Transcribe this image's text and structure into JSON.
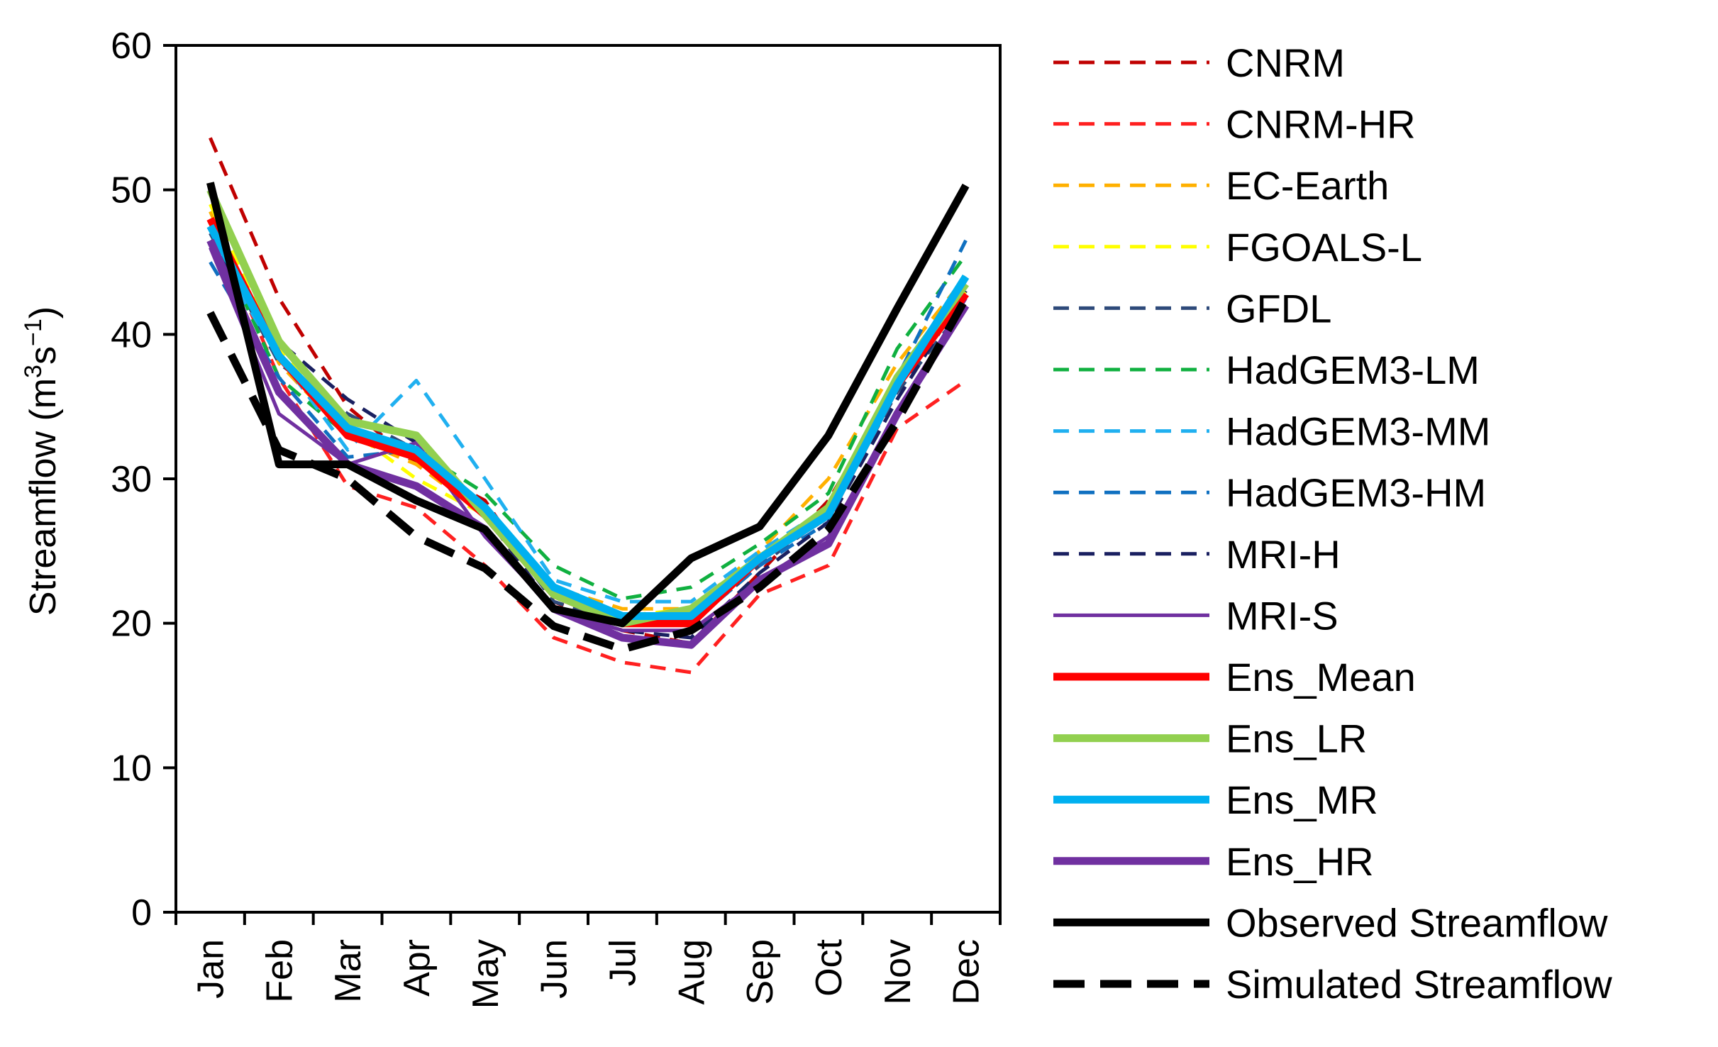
{
  "chart_data": {
    "type": "line",
    "title": "",
    "xlabel": "",
    "ylabel_main": "Streamflow (m",
    "ylabel_sup1": "3",
    "ylabel_mid": "s",
    "ylabel_sup2": "−1",
    "ylabel_end": ")",
    "ylim": [
      0,
      60
    ],
    "yticks": [
      "0",
      "10",
      "20",
      "30",
      "40",
      "50",
      "60"
    ],
    "categories": [
      "Jan",
      "Feb",
      "Mar",
      "Apr",
      "May",
      "Jun",
      "Jul",
      "Aug",
      "Sep",
      "Oct",
      "Nov",
      "Dec"
    ],
    "legend_position": "right",
    "series": [
      {
        "name": "CNRM",
        "color": "#c00000",
        "dash": "short",
        "width": "thin",
        "values": [
          53.6,
          42.5,
          35.0,
          31.0,
          28.5,
          21.5,
          19.5,
          18.6,
          23.5,
          28.5,
          36.5,
          43.0
        ]
      },
      {
        "name": "CNRM-HR",
        "color": "#ff2020",
        "dash": "short",
        "width": "thin",
        "values": [
          48.0,
          37.0,
          29.5,
          28.0,
          24.0,
          19.0,
          17.3,
          16.6,
          22.0,
          24.0,
          33.5,
          36.8
        ]
      },
      {
        "name": "EC-Earth",
        "color": "#ffb000",
        "dash": "short",
        "width": "thin",
        "values": [
          48.5,
          38.0,
          33.0,
          31.0,
          27.5,
          22.5,
          21.0,
          21.0,
          25.0,
          30.0,
          38.0,
          44.0
        ]
      },
      {
        "name": "FGOALS-L",
        "color": "#ffff00",
        "dash": "short",
        "width": "thin",
        "values": [
          49.0,
          39.0,
          33.5,
          30.0,
          27.5,
          22.0,
          20.5,
          21.0,
          24.5,
          28.0,
          37.0,
          43.0
        ]
      },
      {
        "name": "GFDL",
        "color": "#2e4a7a",
        "dash": "short",
        "width": "thin",
        "values": [
          47.0,
          38.0,
          34.5,
          32.0,
          28.0,
          21.5,
          20.0,
          20.0,
          24.0,
          27.5,
          36.0,
          42.0
        ]
      },
      {
        "name": "HadGEM3-LM",
        "color": "#10b040",
        "dash": "short",
        "width": "thin",
        "values": [
          47.5,
          37.0,
          33.0,
          32.0,
          29.0,
          24.0,
          21.7,
          22.5,
          25.5,
          29.0,
          39.0,
          45.5
        ]
      },
      {
        "name": "HadGEM3-MM",
        "color": "#20b0f0",
        "dash": "short",
        "width": "thin",
        "values": [
          46.0,
          38.5,
          32.0,
          36.8,
          30.0,
          23.0,
          21.5,
          21.5,
          25.0,
          28.0,
          37.0,
          44.0
        ]
      },
      {
        "name": "HadGEM3-HM",
        "color": "#1070c0",
        "dash": "short",
        "width": "thin",
        "values": [
          45.0,
          37.0,
          31.5,
          32.0,
          28.0,
          22.0,
          20.0,
          20.0,
          24.0,
          27.0,
          37.0,
          46.5
        ]
      },
      {
        "name": "MRI-H",
        "color": "#1a2060",
        "dash": "short",
        "width": "thin",
        "values": [
          46.5,
          39.5,
          35.5,
          32.5,
          27.5,
          21.0,
          19.5,
          19.0,
          23.5,
          27.0,
          35.5,
          43.0
        ]
      },
      {
        "name": "MRI-S",
        "color": "#7030a0",
        "dash": "solid",
        "width": "thin",
        "values": [
          46.0,
          34.5,
          31.0,
          32.5,
          26.0,
          21.0,
          19.5,
          19.5,
          23.0,
          26.0,
          34.5,
          42.5
        ]
      },
      {
        "name": "Ens_Mean",
        "color": "#ff0000",
        "dash": "solid",
        "width": "thick",
        "values": [
          48.0,
          38.5,
          33.0,
          31.5,
          27.5,
          22.0,
          20.0,
          20.0,
          24.5,
          27.5,
          36.5,
          42.8
        ]
      },
      {
        "name": "Ens_LR",
        "color": "#92d050",
        "dash": "solid",
        "width": "thick",
        "values": [
          50.0,
          39.5,
          34.0,
          33.0,
          27.5,
          22.0,
          20.0,
          21.0,
          24.5,
          28.0,
          37.0,
          43.5
        ]
      },
      {
        "name": "Ens_MR",
        "color": "#00b0f0",
        "dash": "solid",
        "width": "thick",
        "values": [
          47.5,
          38.5,
          33.5,
          32.0,
          28.0,
          22.5,
          20.5,
          20.5,
          24.5,
          27.5,
          36.5,
          44.0
        ]
      },
      {
        "name": "Ens_HR",
        "color": "#7030a0",
        "dash": "solid",
        "width": "thick",
        "values": [
          46.5,
          36.0,
          31.0,
          29.5,
          26.5,
          21.0,
          19.0,
          18.5,
          23.0,
          25.5,
          34.5,
          42.0
        ]
      },
      {
        "name": "Observed Streamflow",
        "color": "#000000",
        "dash": "solid",
        "width": "thick",
        "values": [
          50.5,
          31.0,
          31.0,
          28.5,
          26.5,
          21.0,
          20.0,
          24.5,
          26.7,
          33.0,
          41.8,
          50.3
        ]
      },
      {
        "name": "Simulated Streamflow",
        "color": "#000000",
        "dash": "long",
        "width": "thick",
        "values": [
          41.5,
          32.0,
          30.0,
          26.0,
          23.8,
          19.8,
          18.2,
          19.5,
          22.5,
          26.5,
          34.0,
          42.5
        ]
      }
    ]
  }
}
